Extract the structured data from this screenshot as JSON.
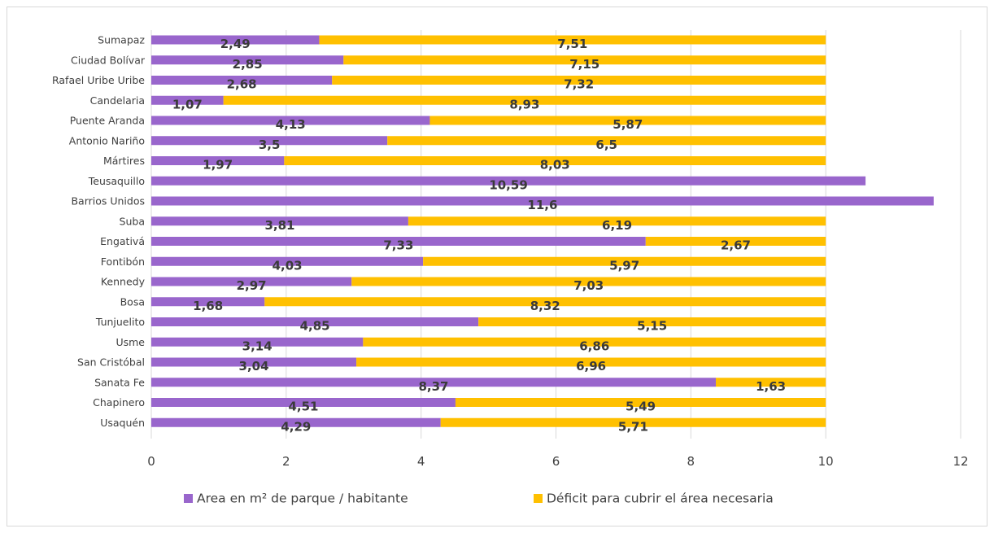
{
  "chart_data": {
    "type": "bar",
    "orientation": "horizontal",
    "stacked": true,
    "title": "",
    "xlabel": "",
    "ylabel": "",
    "xlim": [
      0,
      12
    ],
    "xticks": [
      "0",
      "2",
      "4",
      "6",
      "8",
      "10",
      "12"
    ],
    "grid": "vertical",
    "legend_position": "bottom",
    "categories": [
      "Sumapaz",
      "Ciudad Bolívar",
      "Rafael Uribe Uribe",
      "Candelaria",
      "Puente Aranda",
      "Antonio Nariño",
      "Mártires",
      "Teusaquillo",
      "Barrios Unidos",
      "Suba",
      "Engativá",
      "Fontibón",
      "Kennedy",
      "Bosa",
      "Tunjuelito",
      "Usme",
      "San Cristóbal",
      "Sanata Fe",
      "Chapinero",
      "Usaquén"
    ],
    "series": [
      {
        "name": "Area en m² de parque / habitante",
        "color": "#9966cc",
        "values": [
          2.49,
          2.85,
          2.68,
          1.07,
          4.13,
          3.5,
          1.97,
          10.59,
          11.6,
          3.81,
          7.33,
          4.03,
          2.97,
          1.68,
          4.85,
          3.14,
          3.04,
          8.37,
          4.51,
          4.29
        ],
        "labels": [
          "2,49",
          "2,85",
          "2,68",
          "1,07",
          "4,13",
          "3,5",
          "1,97",
          "10,59",
          "11,6",
          "3,81",
          "7,33",
          "4,03",
          "2,97",
          "1,68",
          "4,85",
          "3,14",
          "3,04",
          "8,37",
          "4,51",
          "4,29"
        ]
      },
      {
        "name": "Déficit para cubrir el área necesaria",
        "color": "#ffc000",
        "values": [
          7.51,
          7.15,
          7.32,
          8.93,
          5.87,
          6.5,
          8.03,
          null,
          null,
          6.19,
          2.67,
          5.97,
          7.03,
          8.32,
          5.15,
          6.86,
          6.96,
          1.63,
          5.49,
          5.71
        ],
        "labels": [
          "7,51",
          "7,15",
          "7,32",
          "8,93",
          "5,87",
          "6,5",
          "8,03",
          "",
          "",
          "6,19",
          "2,67",
          "5,97",
          "7,03",
          "8,32",
          "5,15",
          "6,86",
          "6,96",
          "1,63",
          "5,49",
          "5,71"
        ]
      }
    ]
  }
}
